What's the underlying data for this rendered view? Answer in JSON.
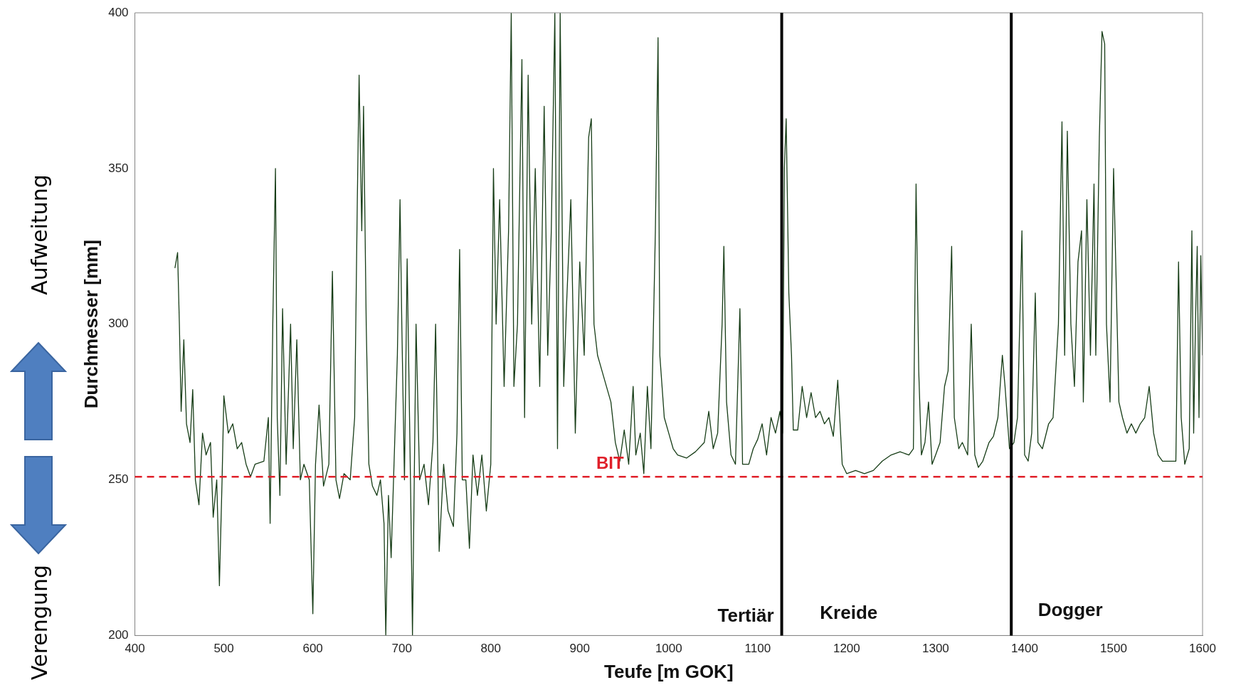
{
  "chart_data": {
    "type": "line",
    "xlabel": "Teufe [m GOK]",
    "ylabel": "Durchmesser [mm]",
    "xlim": [
      400,
      1600
    ],
    "xticks": [
      400,
      500,
      600,
      700,
      800,
      900,
      1000,
      1100,
      1200,
      1300,
      1400,
      1500,
      1600
    ],
    "ylim": [
      200,
      400
    ],
    "yticks": [
      200,
      250,
      300,
      350,
      400
    ],
    "grid": false,
    "legend": false,
    "marker": "none",
    "line_style": "solid",
    "series": [
      {
        "color": "#173d17",
        "x": [
          445,
          448,
          450,
          452,
          455,
          458,
          462,
          465,
          468,
          472,
          476,
          480,
          485,
          488,
          492,
          495,
          498,
          500,
          505,
          510,
          515,
          520,
          525,
          530,
          535,
          545,
          550,
          552,
          555,
          558,
          560,
          563,
          566,
          570,
          575,
          578,
          582,
          586,
          590,
          596,
          600,
          603,
          607,
          612,
          618,
          622,
          626,
          630,
          635,
          642,
          647,
          650,
          652,
          655,
          657,
          660,
          663,
          667,
          672,
          676,
          680,
          682,
          685,
          688,
          692,
          695,
          698,
          700,
          703,
          706,
          710,
          712,
          716,
          720,
          725,
          730,
          735,
          738,
          742,
          747,
          752,
          758,
          762,
          765,
          768,
          772,
          776,
          780,
          785,
          790,
          795,
          800,
          803,
          806,
          810,
          815,
          820,
          823,
          826,
          830,
          835,
          838,
          842,
          846,
          850,
          855,
          860,
          864,
          868,
          872,
          875,
          878,
          882,
          885,
          890,
          895,
          900,
          905,
          910,
          913,
          916,
          920,
          925,
          935,
          940,
          945,
          950,
          955,
          960,
          963,
          968,
          972,
          976,
          980,
          985,
          988,
          990,
          995,
          1000,
          1005,
          1010,
          1020,
          1030,
          1040,
          1045,
          1050,
          1055,
          1060,
          1062,
          1065,
          1070,
          1075,
          1080,
          1083,
          1090,
          1095,
          1100,
          1105,
          1110,
          1115,
          1120,
          1125,
          1128,
          1130,
          1132,
          1135,
          1138,
          1140,
          1145,
          1150,
          1155,
          1160,
          1165,
          1170,
          1175,
          1180,
          1185,
          1190,
          1195,
          1200,
          1210,
          1220,
          1230,
          1240,
          1250,
          1260,
          1270,
          1275,
          1278,
          1281,
          1284,
          1288,
          1292,
          1296,
          1300,
          1305,
          1310,
          1314,
          1318,
          1321,
          1326,
          1330,
          1336,
          1340,
          1344,
          1348,
          1353,
          1360,
          1365,
          1370,
          1375,
          1378,
          1383,
          1388,
          1392,
          1397,
          1400,
          1404,
          1408,
          1412,
          1415,
          1420,
          1427,
          1432,
          1438,
          1442,
          1445,
          1448,
          1452,
          1456,
          1460,
          1464,
          1466,
          1470,
          1474,
          1478,
          1480,
          1484,
          1487,
          1490,
          1492,
          1496,
          1500,
          1504,
          1506,
          1510,
          1515,
          1520,
          1525,
          1530,
          1535,
          1540,
          1545,
          1550,
          1555,
          1565,
          1570,
          1573,
          1576,
          1580,
          1585,
          1588,
          1590,
          1592,
          1594,
          1596,
          1598,
          1600
        ],
        "values": [
          318,
          323,
          300,
          272,
          295,
          268,
          262,
          279,
          250,
          242,
          265,
          258,
          262,
          238,
          250,
          216,
          250,
          277,
          265,
          268,
          260,
          262,
          255,
          251,
          255,
          256,
          270,
          236,
          300,
          350,
          270,
          245,
          305,
          255,
          300,
          260,
          295,
          250,
          255,
          250,
          207,
          255,
          274,
          248,
          255,
          317,
          250,
          244,
          252,
          250,
          270,
          340,
          380,
          330,
          370,
          300,
          255,
          248,
          245,
          250,
          236,
          200,
          245,
          225,
          262,
          290,
          340,
          300,
          250,
          321,
          245,
          200,
          300,
          250,
          255,
          242,
          262,
          300,
          227,
          255,
          240,
          235,
          265,
          324,
          250,
          250,
          228,
          258,
          245,
          258,
          240,
          255,
          350,
          300,
          340,
          280,
          330,
          400,
          280,
          300,
          385,
          270,
          380,
          300,
          350,
          280,
          370,
          290,
          330,
          400,
          260,
          400,
          280,
          305,
          340,
          265,
          320,
          290,
          360,
          366,
          300,
          290,
          285,
          275,
          262,
          256,
          266,
          255,
          280,
          258,
          265,
          252,
          280,
          260,
          330,
          392,
          290,
          270,
          265,
          260,
          258,
          257,
          259,
          262,
          272,
          260,
          265,
          300,
          325,
          275,
          258,
          255,
          305,
          255,
          255,
          260,
          263,
          268,
          258,
          270,
          265,
          272,
          265,
          350,
          366,
          310,
          290,
          266,
          266,
          280,
          270,
          278,
          270,
          272,
          268,
          270,
          264,
          282,
          255,
          252,
          253,
          252,
          253,
          256,
          258,
          259,
          258,
          260,
          345,
          285,
          258,
          262,
          275,
          255,
          258,
          262,
          280,
          285,
          325,
          270,
          260,
          262,
          258,
          300,
          258,
          254,
          256,
          262,
          264,
          270,
          290,
          280,
          260,
          262,
          270,
          330,
          258,
          256,
          265,
          310,
          262,
          260,
          268,
          270,
          300,
          365,
          290,
          362,
          300,
          280,
          320,
          330,
          275,
          340,
          290,
          345,
          290,
          360,
          394,
          390,
          300,
          275,
          350,
          300,
          275,
          270,
          265,
          268,
          265,
          268,
          270,
          280,
          265,
          258,
          256,
          256,
          256,
          320,
          270,
          255,
          260,
          330,
          265,
          300,
          325,
          270,
          322,
          290
        ]
      }
    ],
    "ref_lines": [
      {
        "axis": "y",
        "value": 251,
        "label": "BIT",
        "color": "#e0202a",
        "line_style": "dashed"
      },
      {
        "axis": "x",
        "value": 1127,
        "color": "#000000",
        "line_style": "solid"
      },
      {
        "axis": "x",
        "value": 1385,
        "color": "#000000",
        "line_style": "solid"
      }
    ],
    "annotations": [
      "Aufweitung",
      "Verengung",
      "Tertiär",
      "Kreide",
      "Dogger"
    ]
  }
}
